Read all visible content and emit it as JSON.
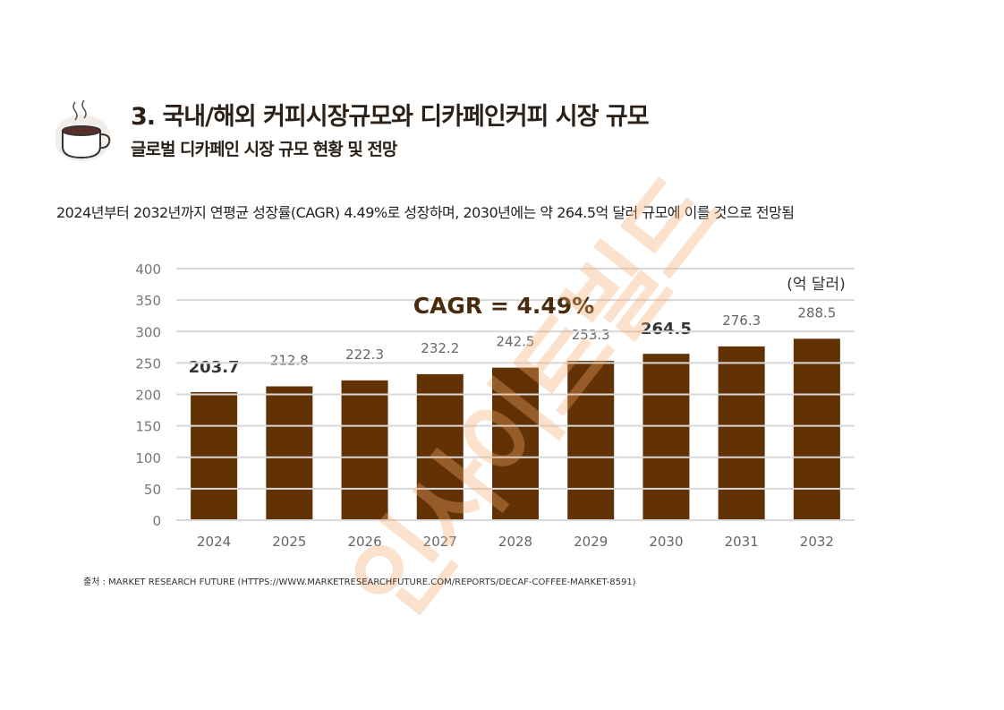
{
  "header": {
    "title": "3. 국내/해외 커피시장규모와 디카페인커피 시장 규모",
    "subtitle": "글로벌 디카페인 시장 규모 현황 및 전망",
    "icon": "coffee-cup-icon"
  },
  "description": "2024년부터 2032년까지 연평균 성장률(CAGR) 4.49%로 성장하며, 2030년에는 약 264.5억 달러 규모에 이를 것으로 전망됨",
  "source": "출처 : MARKET RESEARCH FUTURE (HTTPS://WWW.MARKETRESEARCHFUTURE.COM/REPORTS/DECAF-COFFEE-MARKET-8591)",
  "watermark": "인사이트빌드",
  "chart_data": {
    "type": "bar",
    "categories": [
      "2024",
      "2025",
      "2026",
      "2027",
      "2028",
      "2029",
      "2030",
      "2031",
      "2032"
    ],
    "values": [
      203.7,
      212.8,
      222.3,
      232.2,
      242.5,
      253.3,
      264.5,
      276.3,
      288.5
    ],
    "highlighted": [
      "2024",
      "2030"
    ],
    "unit_label": "(억 달러)",
    "annotation": "CAGR = 4.49%",
    "yticks": [
      0,
      50,
      100,
      150,
      200,
      250,
      300,
      350,
      400
    ],
    "ylim": [
      0,
      400
    ],
    "grid": true,
    "bar_color": "#623205",
    "annotation_color": "#4a2c0c"
  }
}
